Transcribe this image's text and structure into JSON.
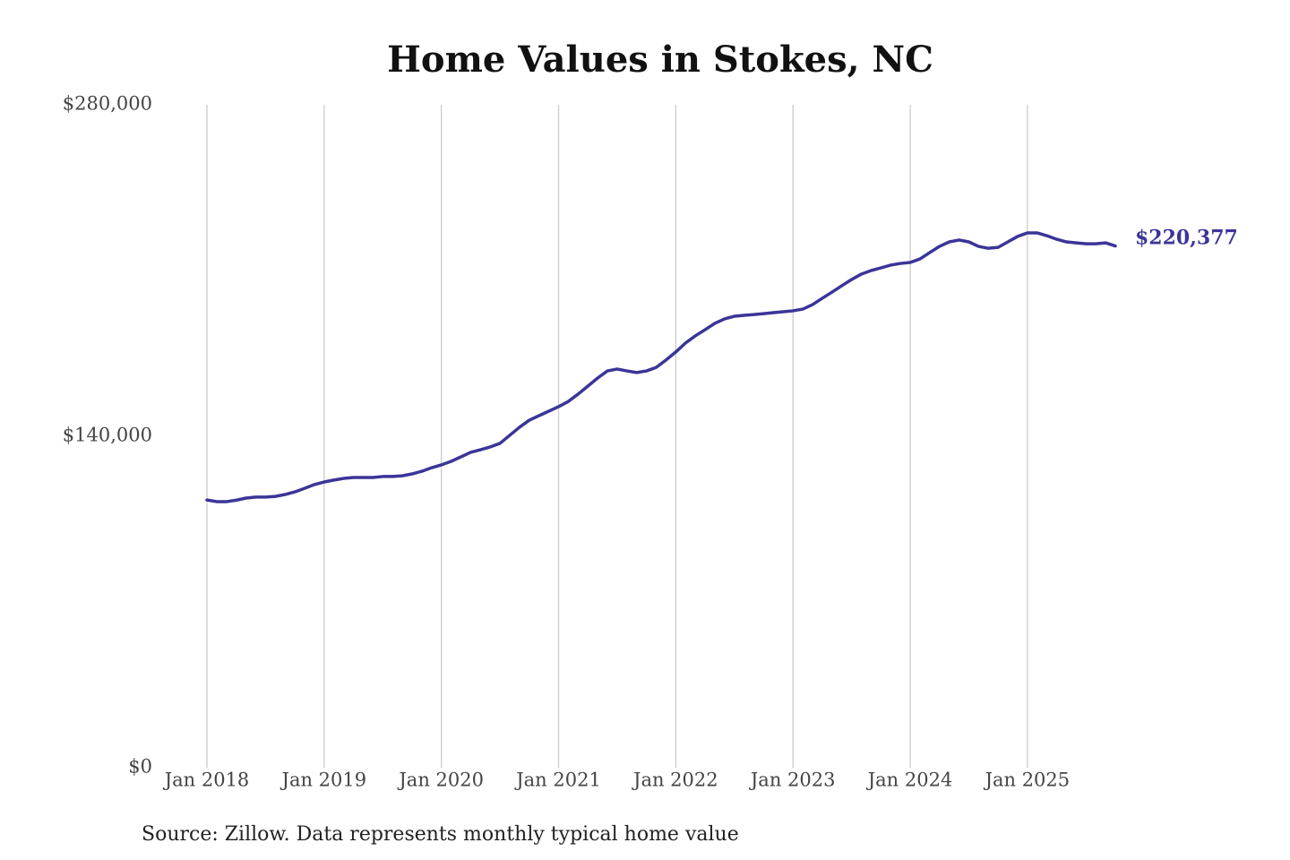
{
  "chart_data": {
    "type": "line",
    "title": "Home Values in Stokes, NC",
    "source": "Source: Zillow. Data represents monthly typical home value",
    "color": "#3b3598",
    "x": [
      "2018-01",
      "2018-02",
      "2018-03",
      "2018-04",
      "2018-05",
      "2018-06",
      "2018-07",
      "2018-08",
      "2018-09",
      "2018-10",
      "2018-11",
      "2018-12",
      "2019-01",
      "2019-02",
      "2019-03",
      "2019-04",
      "2019-05",
      "2019-06",
      "2019-07",
      "2019-08",
      "2019-09",
      "2019-10",
      "2019-11",
      "2019-12",
      "2020-01",
      "2020-02",
      "2020-03",
      "2020-04",
      "2020-05",
      "2020-06",
      "2020-07",
      "2020-08",
      "2020-09",
      "2020-10",
      "2020-11",
      "2020-12",
      "2021-01",
      "2021-02",
      "2021-03",
      "2021-04",
      "2021-05",
      "2021-06",
      "2021-07",
      "2021-08",
      "2021-09",
      "2021-10",
      "2021-11",
      "2021-12",
      "2022-01",
      "2022-02",
      "2022-03",
      "2022-04",
      "2022-05",
      "2022-06",
      "2022-07",
      "2022-08",
      "2022-09",
      "2022-10",
      "2022-11",
      "2022-12",
      "2023-01",
      "2023-02",
      "2023-03",
      "2023-04",
      "2023-05",
      "2023-06",
      "2023-07",
      "2023-08",
      "2023-09",
      "2023-10",
      "2023-11",
      "2023-12",
      "2024-01",
      "2024-02",
      "2024-03",
      "2024-04",
      "2024-05",
      "2024-06",
      "2024-07",
      "2024-08",
      "2024-09",
      "2024-10",
      "2024-11",
      "2024-12",
      "2025-01",
      "2025-02",
      "2025-03",
      "2025-04",
      "2025-05",
      "2025-06",
      "2025-07",
      "2025-08",
      "2025-09",
      "2025-10"
    ],
    "values": [
      113100,
      112400,
      112400,
      113000,
      113900,
      114300,
      114300,
      114600,
      115400,
      116500,
      118000,
      119600,
      120700,
      121500,
      122200,
      122600,
      122600,
      122600,
      123000,
      123000,
      123300,
      124100,
      125200,
      126700,
      127900,
      129400,
      131300,
      133200,
      134300,
      135500,
      137000,
      140400,
      143800,
      146800,
      148700,
      150600,
      152500,
      154700,
      157800,
      161200,
      164600,
      167600,
      168400,
      167600,
      166900,
      167600,
      169100,
      172200,
      175600,
      179400,
      182400,
      185000,
      187700,
      189600,
      190700,
      191100,
      191400,
      191800,
      192200,
      192600,
      193000,
      193700,
      195600,
      198300,
      200900,
      203600,
      206200,
      208500,
      210000,
      211100,
      212300,
      213000,
      213400,
      214900,
      217600,
      220200,
      222100,
      222900,
      222100,
      220200,
      219400,
      219800,
      222100,
      224400,
      225900,
      225900,
      224700,
      223200,
      222100,
      221700,
      221300,
      221300,
      221700,
      220377
    ],
    "value_labels": [
      null,
      null,
      null,
      null,
      null,
      null,
      null,
      null,
      null,
      null,
      null,
      null,
      null,
      null,
      null,
      null,
      null,
      null,
      null,
      null,
      null,
      null,
      null,
      null,
      null,
      null,
      null,
      null,
      null,
      null,
      null,
      null,
      null,
      null,
      null,
      null,
      null,
      null,
      null,
      null,
      null,
      null,
      null,
      null,
      null,
      null,
      null,
      null,
      null,
      null,
      null,
      null,
      null,
      null,
      null,
      null,
      null,
      null,
      null,
      null,
      null,
      null,
      null,
      null,
      null,
      null,
      null,
      null,
      null,
      null,
      null,
      null,
      null,
      null,
      null,
      null,
      null,
      null,
      null,
      null,
      null,
      null,
      null,
      null,
      null,
      null,
      null,
      null,
      null,
      null,
      null,
      null,
      null,
      "$220,377"
    ],
    "xlim": [
      "2018-01",
      "2025-10"
    ],
    "xticks": [
      {
        "value": "2018-01",
        "label": "Jan 2018"
      },
      {
        "value": "2019-01",
        "label": "Jan 2019"
      },
      {
        "value": "2020-01",
        "label": "Jan 2020"
      },
      {
        "value": "2021-01",
        "label": "Jan 2021"
      },
      {
        "value": "2022-01",
        "label": "Jan 2022"
      },
      {
        "value": "2023-01",
        "label": "Jan 2023"
      },
      {
        "value": "2024-01",
        "label": "Jan 2024"
      },
      {
        "value": "2025-01",
        "label": "Jan 2025"
      }
    ],
    "ylim": [
      0,
      280000
    ],
    "yticks": [
      {
        "value": 0,
        "label": "$0"
      },
      {
        "value": 140000,
        "label": "$140,000"
      },
      {
        "value": 280000,
        "label": "$280,000"
      }
    ],
    "grid": "x"
  }
}
